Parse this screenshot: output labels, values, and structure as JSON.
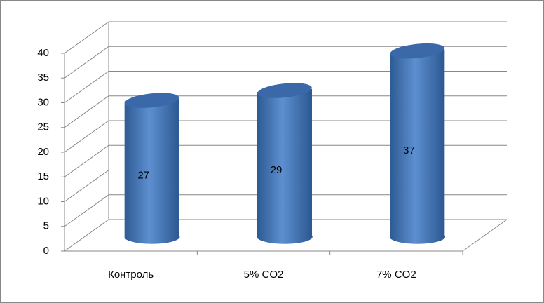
{
  "chart_data": {
    "type": "bar",
    "categories": [
      "Контроль",
      "5% CO2",
      "7% CO2"
    ],
    "values": [
      27,
      29,
      37
    ],
    "color": "#4f81bd",
    "ylim": [
      0,
      40
    ],
    "yticks": [
      0,
      5,
      10,
      15,
      20,
      25,
      30,
      35,
      40
    ],
    "grid": true
  }
}
